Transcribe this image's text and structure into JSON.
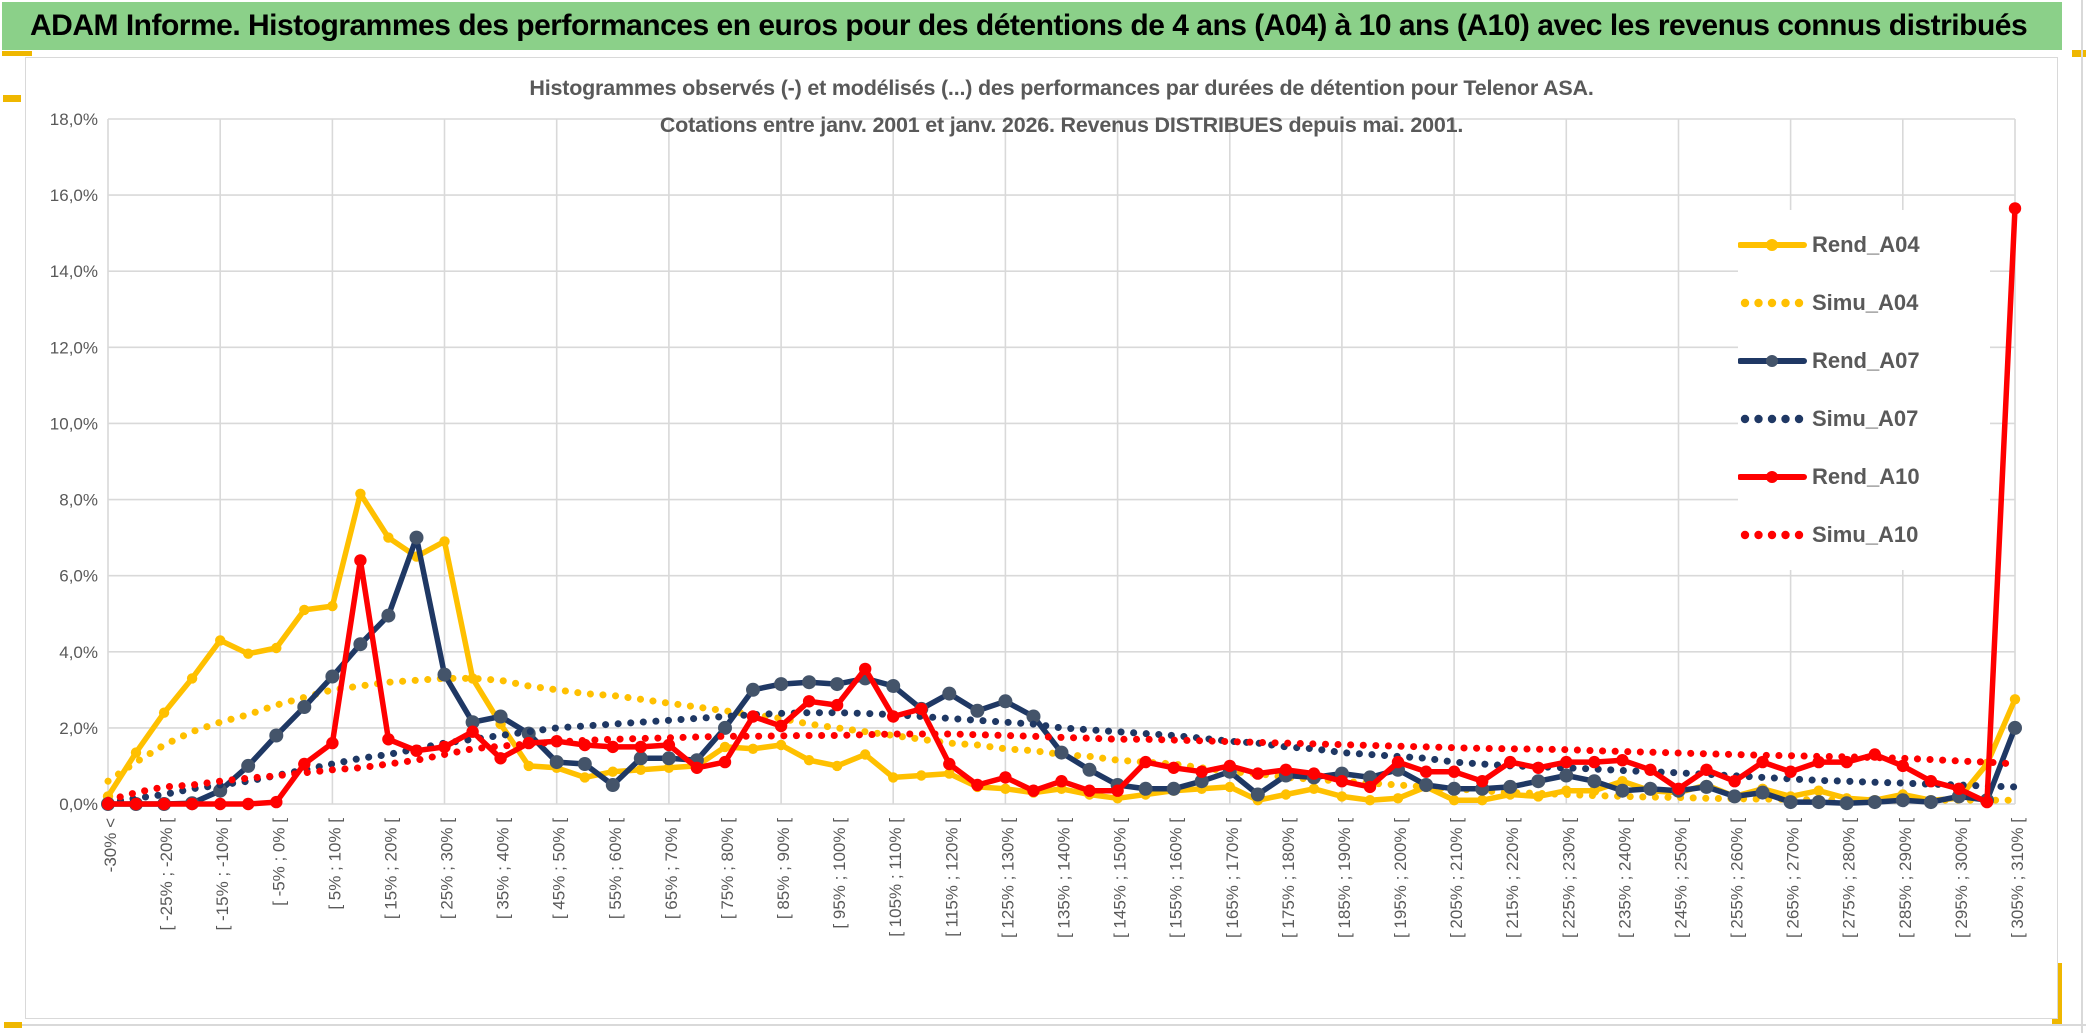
{
  "window": {
    "header_title": "ADAM Informe. Histogrammes des performances en euros pour des détentions de 4 ans (A04) à 10 ans (A10) avec les revenus connus distribués"
  },
  "chart": {
    "title_line1": "Histogrammes observés (-) et modélisés (...) des performances par durées de détention pour Telenor ASA.",
    "title_line2": "Cotations entre janv. 2001 et janv. 2026. Revenus DISTRIBUES depuis mai. 2001."
  },
  "colors": {
    "header_bg": "#8BD089",
    "text_muted": "#595959",
    "grid": "#D9D9D9",
    "accent_gold": "#EFB700",
    "gold": "#FFC000",
    "navy": "#1F3864",
    "navy_marker": "#44546A",
    "red": "#FF0000"
  },
  "chart_data": {
    "type": "line",
    "title": "Histogrammes observés (-) et modélisés (...) des performances par durées de détention pour Telenor ASA. Cotations entre janv. 2001 et janv. 2026. Revenus DISTRIBUES depuis mai. 2001.",
    "xlabel": "",
    "ylabel": "",
    "ylim": [
      0,
      18
    ],
    "y_tick_step": 2,
    "grid": true,
    "legend_position": "right",
    "y_ticks": [
      "18,0%",
      "16,0%",
      "14,0%",
      "12,0%",
      "10,0%",
      "8,0%",
      "6,0%",
      "4,0%",
      "2,0%",
      "0,0%"
    ],
    "x_tick_labels": [
      "-30% <",
      "[ -25% ; -20% [",
      "[ -15% ; -10% [",
      "[ -5% ; 0% [",
      "[ 5% ; 10% [",
      "[ 15% ; 20% [",
      "[ 25% ; 30% [",
      "[ 35% ; 40% [",
      "[ 45% ; 50% [",
      "[ 55% ; 60% [",
      "[ 65% ; 70% [",
      "[ 75% ; 80% [",
      "[ 85% ; 90% [",
      "[ 95% ; 100% [",
      "[ 105% ; 110% [",
      "[ 115% ; 120% [",
      "[ 125% ; 130% [",
      "[ 135% ; 140% [",
      "[ 145% ; 150% [",
      "[ 155% ; 160% [",
      "[ 165% ; 170% [",
      "[ 175% ; 180% [",
      "[ 185% ; 190% [",
      "[ 195% ; 200% [",
      "[ 205% ; 210% [",
      "[ 215% ; 220% [",
      "[ 225% ; 230% [",
      "[ 235% ; 240% [",
      "[ 245% ; 250% [",
      "[ 255% ; 260% [",
      "[ 265% ; 270% [",
      "[ 275% ; 280% [",
      "[ 285% ; 290% [",
      "[ 295% ; 300% [",
      "[ 305% ; 310% ["
    ],
    "series": [
      {
        "name": "Rend_A04",
        "style": "solid",
        "color": "#FFC000",
        "marker_color": "#FFC000",
        "values": [
          0.2,
          1.35,
          2.4,
          3.3,
          4.3,
          3.95,
          4.1,
          5.1,
          5.2,
          8.15,
          7.0,
          6.5,
          6.9,
          3.3,
          2.1,
          1.0,
          0.95,
          0.7,
          0.85,
          0.9,
          0.95,
          1.0,
          1.5,
          1.45,
          1.55,
          1.15,
          1.0,
          1.3,
          0.7,
          0.75,
          0.8,
          0.45,
          0.4,
          0.3,
          0.4,
          0.25,
          0.15,
          0.25,
          0.35,
          0.4,
          0.45,
          0.1,
          0.25,
          0.4,
          0.2,
          0.1,
          0.15,
          0.45,
          0.1,
          0.1,
          0.25,
          0.2,
          0.35,
          0.35,
          0.6,
          0.35,
          0.3,
          0.5,
          0.2,
          0.4,
          0.2,
          0.35,
          0.15,
          0.1,
          0.25,
          0.1,
          0.15,
          1.05,
          2.75
        ]
      },
      {
        "name": "Simu_A04",
        "style": "dotted",
        "color": "#FFC000",
        "values": [
          0.6,
          1.1,
          1.55,
          1.9,
          2.15,
          2.35,
          2.6,
          2.8,
          3.0,
          3.1,
          3.2,
          3.25,
          3.3,
          3.3,
          3.25,
          3.1,
          3.0,
          2.9,
          2.85,
          2.75,
          2.65,
          2.55,
          2.45,
          2.35,
          2.25,
          2.1,
          2.0,
          1.9,
          1.8,
          1.7,
          1.6,
          1.55,
          1.45,
          1.4,
          1.3,
          1.25,
          1.15,
          1.1,
          1.05,
          0.95,
          0.85,
          0.8,
          0.7,
          0.65,
          0.6,
          0.55,
          0.5,
          0.45,
          0.4,
          0.35,
          0.3,
          0.28,
          0.25,
          0.22,
          0.2,
          0.18,
          0.17,
          0.15,
          0.14,
          0.13,
          0.12,
          0.11,
          0.1,
          0.1,
          0.1,
          0.1,
          0.1,
          0.1,
          0.1
        ]
      },
      {
        "name": "Rend_A07",
        "style": "solid",
        "color": "#1F3864",
        "marker_color": "#44546A",
        "values": [
          0,
          0,
          0,
          0.02,
          0.35,
          1.0,
          1.8,
          2.55,
          3.35,
          4.2,
          4.95,
          7.0,
          3.4,
          2.15,
          2.3,
          1.85,
          1.1,
          1.05,
          0.5,
          1.2,
          1.2,
          1.15,
          2.0,
          3.0,
          3.15,
          3.2,
          3.15,
          3.3,
          3.1,
          2.5,
          2.9,
          2.45,
          2.7,
          2.3,
          1.35,
          0.9,
          0.5,
          0.4,
          0.4,
          0.6,
          0.85,
          0.25,
          0.75,
          0.7,
          0.8,
          0.7,
          0.9,
          0.5,
          0.4,
          0.4,
          0.45,
          0.6,
          0.75,
          0.6,
          0.35,
          0.4,
          0.35,
          0.45,
          0.2,
          0.3,
          0.05,
          0.05,
          0.02,
          0.05,
          0.1,
          0.05,
          0.2,
          0.1,
          2.0
        ]
      },
      {
        "name": "Simu_A07",
        "style": "dotted",
        "color": "#1F3864",
        "values": [
          0.05,
          0.15,
          0.25,
          0.4,
          0.5,
          0.6,
          0.75,
          0.9,
          1.05,
          1.2,
          1.3,
          1.45,
          1.6,
          1.7,
          1.8,
          1.9,
          2.0,
          2.05,
          2.1,
          2.15,
          2.2,
          2.25,
          2.3,
          2.35,
          2.38,
          2.4,
          2.4,
          2.38,
          2.35,
          2.3,
          2.25,
          2.2,
          2.15,
          2.1,
          2.0,
          1.95,
          1.9,
          1.85,
          1.8,
          1.73,
          1.65,
          1.6,
          1.5,
          1.45,
          1.35,
          1.3,
          1.25,
          1.2,
          1.1,
          1.05,
          1.0,
          0.98,
          0.95,
          0.92,
          0.88,
          0.85,
          0.82,
          0.78,
          0.74,
          0.7,
          0.66,
          0.62,
          0.6,
          0.57,
          0.55,
          0.52,
          0.5,
          0.47,
          0.45
        ]
      },
      {
        "name": "Rend_A10",
        "style": "solid",
        "color": "#FF0000",
        "marker_color": "#FF0000",
        "values": [
          0,
          0,
          0,
          0,
          0,
          0,
          0.05,
          1.05,
          1.6,
          6.4,
          1.7,
          1.4,
          1.5,
          1.9,
          1.2,
          1.6,
          1.65,
          1.55,
          1.5,
          1.5,
          1.55,
          0.95,
          1.1,
          2.3,
          2.05,
          2.7,
          2.6,
          3.55,
          2.3,
          2.5,
          1.05,
          0.5,
          0.7,
          0.35,
          0.6,
          0.35,
          0.35,
          1.1,
          0.95,
          0.85,
          1.0,
          0.8,
          0.9,
          0.8,
          0.6,
          0.45,
          1.1,
          0.85,
          0.85,
          0.6,
          1.1,
          0.95,
          1.1,
          1.1,
          1.15,
          0.9,
          0.4,
          0.9,
          0.6,
          1.1,
          0.85,
          1.1,
          1.1,
          1.3,
          1.0,
          0.6,
          0.4,
          0.05,
          15.65
        ]
      },
      {
        "name": "Simu_A10",
        "style": "dotted",
        "color": "#FF0000",
        "values": [
          0.1,
          0.3,
          0.45,
          0.5,
          0.6,
          0.68,
          0.74,
          0.82,
          0.9,
          0.95,
          1.05,
          1.15,
          1.3,
          1.45,
          1.52,
          1.58,
          1.63,
          1.67,
          1.7,
          1.72,
          1.74,
          1.76,
          1.78,
          1.78,
          1.79,
          1.8,
          1.8,
          1.82,
          1.84,
          1.84,
          1.84,
          1.82,
          1.8,
          1.78,
          1.75,
          1.73,
          1.7,
          1.7,
          1.68,
          1.66,
          1.64,
          1.62,
          1.6,
          1.58,
          1.56,
          1.54,
          1.52,
          1.5,
          1.48,
          1.46,
          1.45,
          1.44,
          1.43,
          1.4,
          1.38,
          1.36,
          1.34,
          1.32,
          1.3,
          1.28,
          1.27,
          1.25,
          1.24,
          1.22,
          1.2,
          1.17,
          1.13,
          1.1,
          1.05
        ]
      }
    ]
  }
}
